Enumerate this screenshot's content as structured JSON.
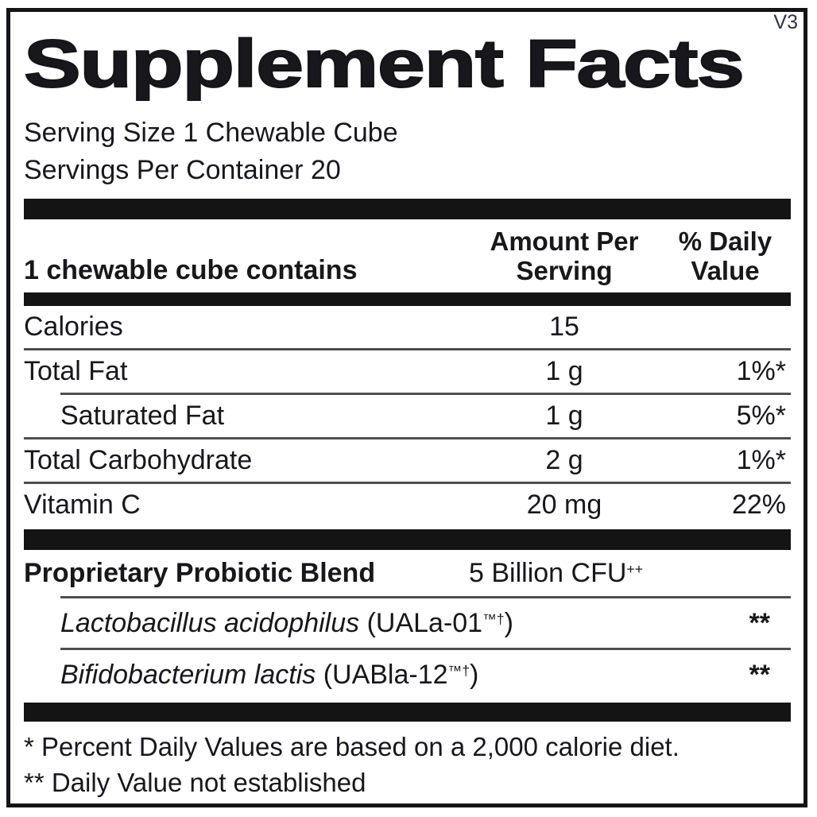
{
  "label": {
    "version": "V3",
    "title": "Supplement Facts",
    "serving_size": "Serving Size 1 Chewable Cube",
    "servings_per_container": "Servings Per Container 20",
    "columns": {
      "contains": "1 chewable cube contains",
      "amount_line1": "Amount Per",
      "amount_line2": "Serving",
      "dv_line1": "% Daily",
      "dv_line2": "Value"
    },
    "nutrients": [
      {
        "name": "Calories",
        "amount": "15",
        "dv": ""
      },
      {
        "name": "Total Fat",
        "amount": "1 g",
        "dv": "1%*"
      },
      {
        "name": "Saturated Fat",
        "amount": "1 g",
        "dv": "5%*"
      },
      {
        "name": "Total Carbohydrate",
        "amount": "2 g",
        "dv": "1%*"
      },
      {
        "name": "Vitamin C",
        "amount": "20 mg",
        "dv": "22%"
      }
    ],
    "blend": {
      "name": "Proprietary Probiotic Blend",
      "amount": "5 Billion CFU",
      "amount_sup": "++"
    },
    "strains": [
      {
        "latin": "Lactobacillus acidophilus",
        "code": " (UALa-01",
        "code_sup": "™†",
        "code_close": ")",
        "dv": "**"
      },
      {
        "latin": "Bifidobacterium lactis",
        "code": " (UABla-12",
        "code_sup": "™†",
        "code_close": ")",
        "dv": "**"
      }
    ],
    "footnotes": [
      "* Percent Daily Values are based on a 2,000 calorie diet.",
      "** Daily Value not established"
    ],
    "colors": {
      "text": "#17171c",
      "bar": "#141414",
      "divider": "#4e4e4e",
      "border": "#141418"
    }
  }
}
